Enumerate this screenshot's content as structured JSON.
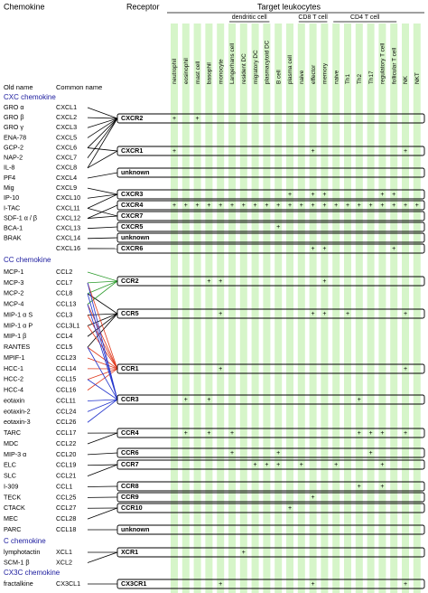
{
  "header": {
    "chemokine": "Chemokine",
    "receptor": "Receptor",
    "target": "Target leukocytes",
    "old_name": "Old name",
    "common_name": "Common name"
  },
  "groups": [
    "dendritic cell",
    "CD8 T cell",
    "CD4 T cell"
  ],
  "columns": [
    "neutrophil",
    "eosinophil",
    "mast cell",
    "basophil",
    "monocyte",
    "Langerhans cell",
    "resident DC",
    "migratory DC",
    "plasmacytoid DC",
    "B cell",
    "plasma cell",
    "naive",
    "effector",
    "memory",
    "naive",
    "Th1",
    "Th2",
    "Th17",
    "regulatory T cell",
    "follicular T cell",
    "NK",
    "NKT"
  ],
  "sections": [
    {
      "title": "CXC chemokine",
      "rows": [
        [
          "GRO α",
          "CXCL1"
        ],
        [
          "GRO β",
          "CXCL2"
        ],
        [
          "GRO γ",
          "CXCL3"
        ],
        [
          "ENA-78",
          "CXCL5"
        ],
        [
          "GCP-2",
          "CXCL6"
        ],
        [
          "NAP-2",
          "CXCL7"
        ],
        [
          "IL-8",
          "CXCL8"
        ],
        [
          "PF4",
          "CXCL4"
        ],
        [
          "Mig",
          "CXCL9"
        ],
        [
          "IP-10",
          "CXCL10"
        ],
        [
          "I-TAC",
          "CXCL11"
        ],
        [
          "SDF-1 α / β",
          "CXCL12"
        ],
        [
          "BCA-1",
          "CXCL13"
        ],
        [
          "BRAK",
          "CXCL14"
        ],
        [
          null,
          "CXCL16"
        ]
      ]
    },
    {
      "title": "CC chemokine",
      "rows": [
        [
          "MCP-1",
          "CCL2"
        ],
        [
          "MCP-3",
          "CCL7"
        ],
        [
          "MCP-2",
          "CCL8"
        ],
        [
          "MCP-4",
          "CCL13"
        ],
        [
          "MIP-1 α S",
          "CCL3"
        ],
        [
          "MIP-1 α P",
          "CCL3L1"
        ],
        [
          "MIP-1 β",
          "CCL4"
        ],
        [
          "RANTES",
          "CCL5"
        ],
        [
          "MPIF-1",
          "CCL23"
        ],
        [
          "HCC-1",
          "CCL14"
        ],
        [
          "HCC-2",
          "CCL15"
        ],
        [
          "HCC-4",
          "CCL16"
        ],
        [
          "eotaxin",
          "CCL11"
        ],
        [
          "eotaxin-2",
          "CCL24"
        ],
        [
          "eotaxin-3",
          "CCL26"
        ],
        [
          "TARC",
          "CCL17"
        ],
        [
          "MDC",
          "CCL22"
        ],
        [
          "MIP-3 α",
          "CCL20"
        ],
        [
          "ELC",
          "CCL19"
        ],
        [
          "SLC",
          "CCL21"
        ],
        [
          "I-309",
          "CCL1"
        ],
        [
          "TECK",
          "CCL25"
        ],
        [
          "CTACK",
          "CCL27"
        ],
        [
          "MEC",
          "CCL28"
        ],
        [
          "PARC",
          "CCL18"
        ]
      ]
    },
    {
      "title": "C chemokine",
      "rows": [
        [
          "lymphotactin",
          "XCL1"
        ],
        [
          "SCM-1 β",
          "XCL2"
        ]
      ]
    },
    {
      "title": "CX3C chemokine",
      "rows": [
        [
          "fractalkine",
          "CX3CL1"
        ]
      ]
    }
  ],
  "receptors": [
    {
      "name": "CXCR2",
      "cells": [
        "+",
        null,
        "+",
        null,
        null,
        null,
        null,
        null,
        null,
        null,
        null,
        null,
        null,
        null,
        null,
        null,
        null,
        null,
        null,
        null,
        null,
        null
      ]
    },
    {
      "name": "CXCR1",
      "cells": [
        "+",
        null,
        null,
        null,
        null,
        null,
        null,
        null,
        null,
        null,
        null,
        null,
        "+",
        null,
        null,
        null,
        null,
        null,
        null,
        null,
        "+",
        null
      ]
    },
    {
      "name": "unknown",
      "cells": [
        null,
        null,
        null,
        null,
        null,
        null,
        null,
        null,
        null,
        null,
        null,
        null,
        null,
        null,
        null,
        null,
        null,
        null,
        null,
        null,
        null,
        null
      ]
    },
    {
      "name": "CXCR3",
      "cells": [
        null,
        null,
        null,
        null,
        null,
        null,
        null,
        null,
        null,
        null,
        "+",
        null,
        "+",
        "+",
        null,
        null,
        null,
        null,
        "+",
        "+",
        null,
        null
      ]
    },
    {
      "name": "CXCR4",
      "cells": [
        "+",
        "+",
        "+",
        "+",
        "+",
        "+",
        "+",
        "+",
        "+",
        "+",
        "+",
        "+",
        "+",
        "+",
        "+",
        "+",
        "+",
        "+",
        "+",
        "+",
        "+",
        "+"
      ]
    },
    {
      "name": "CXCR7",
      "cells": [
        null,
        null,
        null,
        null,
        null,
        null,
        null,
        null,
        null,
        null,
        null,
        null,
        null,
        null,
        null,
        null,
        null,
        null,
        null,
        null,
        null,
        null
      ]
    },
    {
      "name": "CXCR5",
      "cells": [
        null,
        null,
        null,
        null,
        null,
        null,
        null,
        null,
        null,
        "+",
        null,
        null,
        null,
        null,
        null,
        null,
        null,
        null,
        null,
        null,
        null,
        null
      ]
    },
    {
      "name": "unknown",
      "cells": [
        null,
        null,
        null,
        null,
        null,
        null,
        null,
        null,
        null,
        null,
        null,
        null,
        null,
        null,
        null,
        null,
        null,
        null,
        null,
        null,
        null,
        null
      ]
    },
    {
      "name": "CXCR6",
      "cells": [
        null,
        null,
        null,
        null,
        null,
        null,
        null,
        null,
        null,
        null,
        null,
        null,
        "+",
        "+",
        null,
        null,
        null,
        null,
        null,
        "+",
        null,
        null
      ]
    },
    {
      "name": "CCR2",
      "cells": [
        null,
        null,
        null,
        "+",
        "+",
        null,
        null,
        null,
        null,
        null,
        null,
        null,
        null,
        "+",
        null,
        null,
        null,
        null,
        null,
        null,
        null,
        null
      ]
    },
    {
      "name": "CCR5",
      "cells": [
        null,
        null,
        null,
        null,
        "+",
        null,
        null,
        null,
        null,
        null,
        null,
        null,
        "+",
        "+",
        null,
        "+",
        null,
        null,
        null,
        null,
        "+",
        null
      ]
    },
    {
      "name": "CCR1",
      "cells": [
        null,
        null,
        null,
        null,
        "+",
        null,
        null,
        null,
        null,
        null,
        null,
        null,
        null,
        null,
        null,
        null,
        null,
        null,
        null,
        null,
        "+",
        null
      ]
    },
    {
      "name": "CCR3",
      "cells": [
        null,
        "+",
        null,
        "+",
        null,
        null,
        null,
        null,
        null,
        null,
        null,
        null,
        null,
        null,
        null,
        null,
        "+",
        null,
        null,
        null,
        null,
        null
      ]
    },
    {
      "name": "CCR4",
      "cells": [
        null,
        "+",
        null,
        "+",
        null,
        "+",
        null,
        null,
        null,
        null,
        null,
        null,
        null,
        null,
        null,
        null,
        "+",
        "+",
        "+",
        null,
        "+",
        null
      ]
    },
    {
      "name": "CCR6",
      "cells": [
        null,
        null,
        null,
        null,
        null,
        "+",
        null,
        null,
        null,
        "+",
        null,
        null,
        null,
        null,
        null,
        null,
        null,
        "+",
        null,
        null,
        null,
        null
      ]
    },
    {
      "name": "CCR7",
      "cells": [
        null,
        null,
        null,
        null,
        null,
        null,
        null,
        "+",
        "+",
        "+",
        null,
        "+",
        null,
        null,
        "+",
        null,
        null,
        null,
        "+",
        null,
        null,
        null
      ]
    },
    {
      "name": "CCR8",
      "cells": [
        null,
        null,
        null,
        null,
        null,
        null,
        null,
        null,
        null,
        null,
        null,
        null,
        null,
        null,
        null,
        null,
        "+",
        null,
        "+",
        null,
        null,
        null
      ]
    },
    {
      "name": "CCR9",
      "cells": [
        null,
        null,
        null,
        null,
        null,
        null,
        null,
        null,
        null,
        null,
        null,
        null,
        "+",
        null,
        null,
        null,
        null,
        null,
        null,
        null,
        null,
        null
      ]
    },
    {
      "name": "CCR10",
      "cells": [
        null,
        null,
        null,
        null,
        null,
        null,
        null,
        null,
        null,
        null,
        "+",
        null,
        null,
        null,
        null,
        null,
        null,
        null,
        null,
        null,
        null,
        null
      ]
    },
    {
      "name": "unknown",
      "cells": [
        null,
        null,
        null,
        null,
        null,
        null,
        null,
        null,
        null,
        null,
        null,
        null,
        null,
        null,
        null,
        null,
        null,
        null,
        null,
        null,
        null,
        null
      ]
    },
    {
      "name": "XCR1",
      "cells": [
        null,
        null,
        null,
        null,
        null,
        null,
        "+",
        null,
        null,
        null,
        null,
        null,
        null,
        null,
        null,
        null,
        null,
        null,
        null,
        null,
        null,
        null
      ]
    },
    {
      "name": "CX3CR1",
      "cells": [
        null,
        null,
        null,
        null,
        "+",
        null,
        null,
        null,
        null,
        null,
        null,
        null,
        "+",
        null,
        null,
        null,
        null,
        null,
        null,
        null,
        "+",
        null
      ]
    }
  ]
}
